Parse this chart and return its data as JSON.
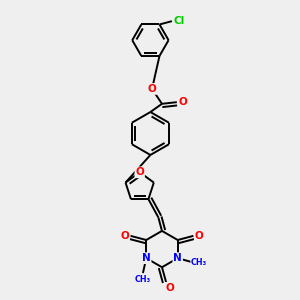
{
  "background_color": "#efefef",
  "bond_color": "#000000",
  "atom_colors": {
    "O": "#ff0000",
    "N": "#0000ff",
    "Cl": "#00cc00",
    "C": "#000000"
  },
  "figsize": [
    3.0,
    3.0
  ],
  "dpi": 100
}
